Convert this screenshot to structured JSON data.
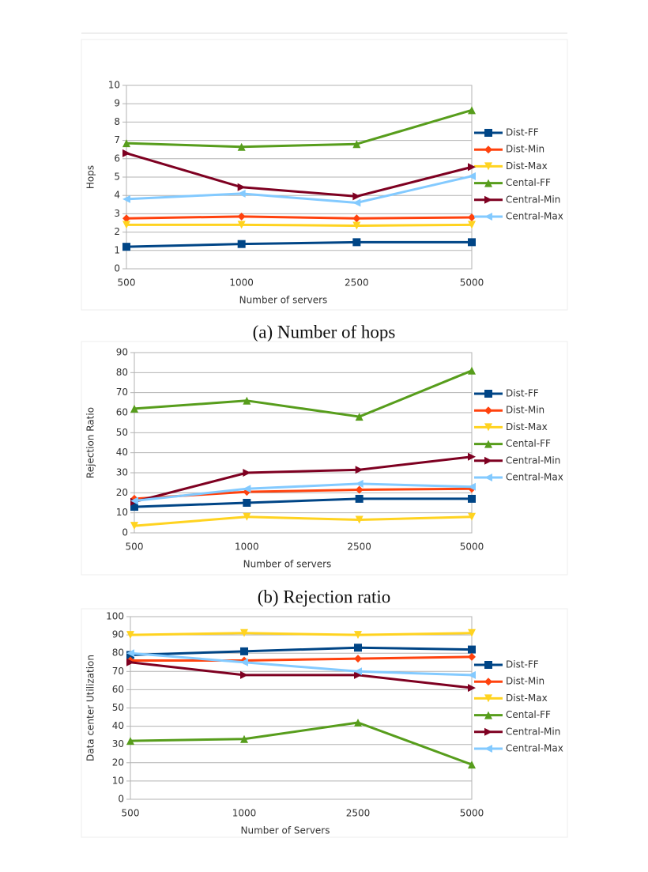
{
  "chart_data": [
    {
      "type": "line",
      "caption": "(a) Number of hops",
      "x_label": "Number of servers",
      "y_label": "Hops",
      "categories": [
        "500",
        "1000",
        "2500",
        "5000"
      ],
      "ylim": [
        0,
        10
      ],
      "yticks": [
        0,
        1,
        2,
        3,
        4,
        5,
        6,
        7,
        8,
        9,
        10
      ],
      "grid": true,
      "legend": "right",
      "series": [
        {
          "name": "Dist-FF",
          "color": "#004586",
          "marker": "square",
          "values": [
            1.2,
            1.35,
            1.45,
            1.45
          ]
        },
        {
          "name": "Dist-Min",
          "color": "#ff420e",
          "marker": "diamond",
          "values": [
            2.75,
            2.85,
            2.75,
            2.8
          ]
        },
        {
          "name": "Dist-Max",
          "color": "#ffd320",
          "marker": "down",
          "values": [
            2.4,
            2.4,
            2.35,
            2.4
          ]
        },
        {
          "name": "Cental-FF",
          "color": "#579d1c",
          "marker": "up",
          "values": [
            6.85,
            6.65,
            6.8,
            8.65
          ]
        },
        {
          "name": "Central-Min",
          "color": "#7e0021",
          "marker": "right",
          "values": [
            6.3,
            4.45,
            3.95,
            5.55
          ]
        },
        {
          "name": "Central-Max",
          "color": "#83caff",
          "marker": "left",
          "values": [
            3.8,
            4.1,
            3.6,
            5.05
          ]
        }
      ]
    },
    {
      "type": "line",
      "caption": "(b) Rejection ratio",
      "x_label": "Number of servers",
      "y_label": "Rejection Ratio",
      "categories": [
        "500",
        "1000",
        "2500",
        "5000"
      ],
      "ylim": [
        0,
        90
      ],
      "yticks": [
        0,
        10,
        20,
        30,
        40,
        50,
        60,
        70,
        80,
        90
      ],
      "grid": true,
      "legend": "right",
      "series": [
        {
          "name": "Dist-FF",
          "color": "#004586",
          "marker": "square",
          "values": [
            13,
            15,
            17,
            17
          ]
        },
        {
          "name": "Dist-Min",
          "color": "#ff420e",
          "marker": "diamond",
          "values": [
            17,
            20.5,
            21.5,
            22
          ]
        },
        {
          "name": "Dist-Max",
          "color": "#ffd320",
          "marker": "down",
          "values": [
            3.5,
            8,
            6.5,
            8
          ]
        },
        {
          "name": "Cental-FF",
          "color": "#579d1c",
          "marker": "up",
          "values": [
            62,
            66,
            58,
            81
          ]
        },
        {
          "name": "Central-Min",
          "color": "#7e0021",
          "marker": "right",
          "values": [
            15.5,
            30,
            31.5,
            38
          ]
        },
        {
          "name": "Central-Max",
          "color": "#83caff",
          "marker": "left",
          "values": [
            16,
            22,
            24.5,
            23
          ]
        }
      ]
    },
    {
      "type": "line",
      "x_label": "Number of Servers",
      "y_label": "Data center Utilization",
      "categories": [
        "500",
        "1000",
        "2500",
        "5000"
      ],
      "ylim": [
        0,
        100
      ],
      "yticks": [
        0,
        10,
        20,
        30,
        40,
        50,
        60,
        70,
        80,
        90,
        100
      ],
      "grid": true,
      "legend": "right",
      "series": [
        {
          "name": "Dist-FF",
          "color": "#004586",
          "marker": "square",
          "values": [
            79,
            81,
            83,
            82
          ]
        },
        {
          "name": "Dist-Min",
          "color": "#ff420e",
          "marker": "diamond",
          "values": [
            76,
            76,
            77,
            78
          ]
        },
        {
          "name": "Dist-Max",
          "color": "#ffd320",
          "marker": "down",
          "values": [
            90,
            91,
            90,
            91
          ]
        },
        {
          "name": "Cental-FF",
          "color": "#579d1c",
          "marker": "up",
          "values": [
            32,
            33,
            42,
            19
          ]
        },
        {
          "name": "Central-Min",
          "color": "#7e0021",
          "marker": "right",
          "values": [
            75,
            68,
            68,
            61
          ]
        },
        {
          "name": "Central-Max",
          "color": "#83caff",
          "marker": "left",
          "values": [
            80,
            75,
            70,
            68
          ]
        }
      ]
    }
  ]
}
